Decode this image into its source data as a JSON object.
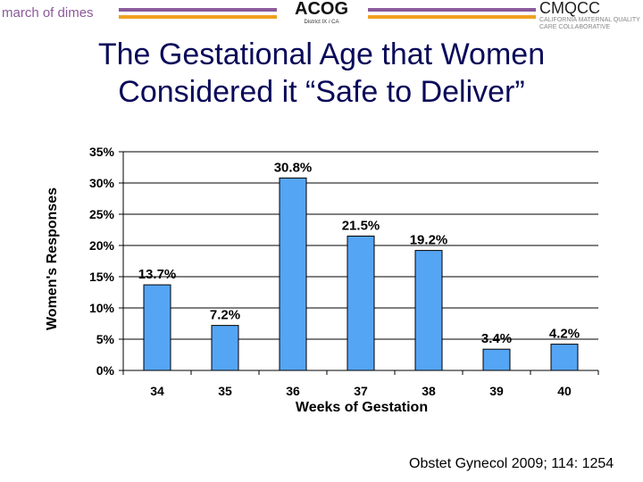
{
  "header": {
    "logo_left": "march of dimes",
    "logo_center": "ACOG",
    "logo_center_sub": "District IX / CA",
    "logo_right": "CMQCC",
    "logo_right_sub": "CALIFORNIA MATERNAL QUALITY CARE COLLABORATIVE",
    "colors": {
      "purple": "#8a5a9a",
      "orange": "#f0a020"
    }
  },
  "title_line1": "The Gestational Age that Women",
  "title_line2": "Considered it “Safe to Deliver”",
  "citation": "Obstet Gynecol 2009; 114: 1254",
  "chart_data": {
    "type": "bar",
    "categories": [
      "34",
      "35",
      "36",
      "37",
      "38",
      "39",
      "40"
    ],
    "values": [
      13.7,
      7.2,
      30.8,
      21.5,
      19.2,
      3.4,
      4.2
    ],
    "data_labels": [
      "13.7%",
      "7.2%",
      "30.8%",
      "21.5%",
      "19.2%",
      "3.4%",
      "4.2%"
    ],
    "xlabel": "Weeks of Gestation",
    "ylabel": "Women's Responses",
    "ylim": [
      0,
      35
    ],
    "yticks": [
      "0%",
      "5%",
      "10%",
      "15%",
      "20%",
      "25%",
      "30%",
      "35%"
    ],
    "grid": true,
    "bar_color": "#55a5f5"
  }
}
